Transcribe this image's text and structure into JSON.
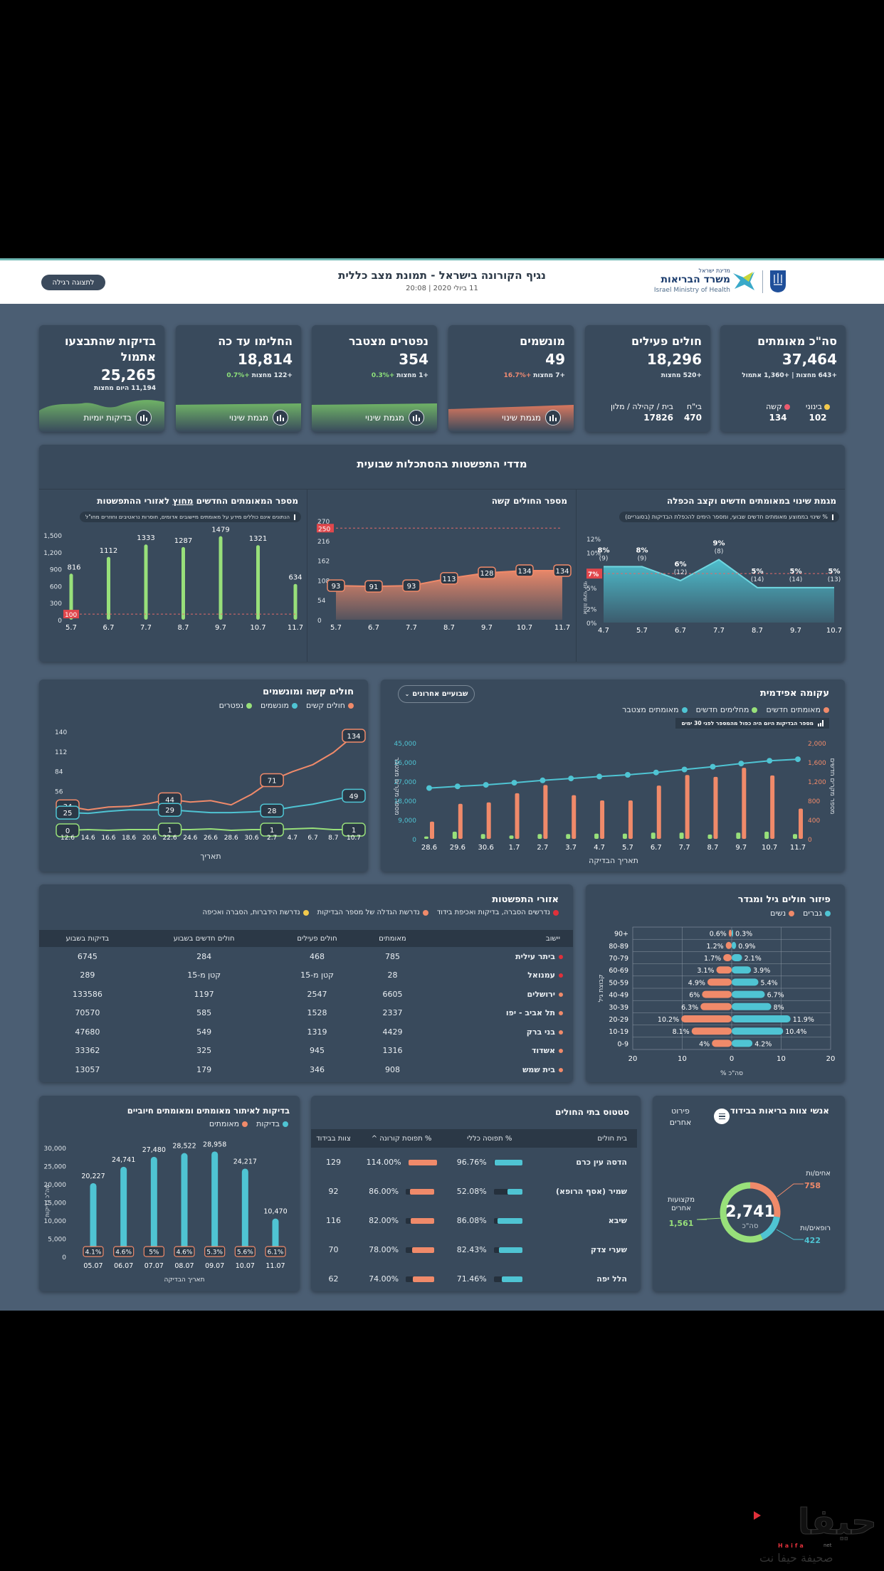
{
  "header": {
    "title": "נגיף הקורונה בישראל - תמונת מצב כללית",
    "subtitle": "11 ביולי 2020 | 20:08",
    "regular_view_button": "לתצוגה רגילה",
    "logo": {
      "line1": "מדינת ישראל",
      "line2": "משרד הבריאות",
      "line3": "Israel Ministry of Health"
    }
  },
  "kpis": [
    {
      "title": "סה\"כ מאומתים",
      "value": "37,464",
      "sub": "+643 מחצות | +1,360 אתמול",
      "legend": [
        {
          "label": "בינוני",
          "value": "102",
          "color": "#f2c94c"
        },
        {
          "label": "קשה",
          "value": "134",
          "color": "#eb5a6e"
        }
      ]
    },
    {
      "title": "חולים פעילים",
      "value": "18,296",
      "sub": "+520 מחצות",
      "split": [
        {
          "label": "בי\"ח",
          "value": "470"
        },
        {
          "label": "בית / קהילה / מלון",
          "value": "17826"
        }
      ]
    },
    {
      "title": "מונשמים",
      "value": "49",
      "sub_a": "+7 מחצות",
      "sub_pct": "+16.7%",
      "button": "מגמת שינוי"
    },
    {
      "title": "נפטרים מצטבר",
      "value": "354",
      "sub_a": "+1 מחצות",
      "sub_pct": "+0.3%",
      "button": "מגמת שינוי"
    },
    {
      "title": "החלימו עד כה",
      "value": "18,814",
      "sub_a": "+122 מחצות",
      "sub_pct": "+0.7%",
      "button": "מגמת שינוי"
    },
    {
      "title": "בדיקות שהתבצעו אתמול",
      "value": "25,265",
      "sub": "11,194 היום מחצות",
      "button": "בדיקות יומיות"
    }
  ],
  "weekly_section": {
    "title": "מדדי התפשטות בהסתכלות שבועית"
  },
  "colors": {
    "orange": "#f08a6a",
    "teal": "#4fc4d3",
    "green": "#98e07a",
    "red": "#e0474c",
    "yellow": "#f2c94c"
  },
  "chart_data": [
    {
      "id": "growth",
      "type": "area",
      "title": "מגמת שינוי במאומתים חדשים וקצב הכפלה",
      "info": "% שינוי בממוצע מאומתים חדשים שבועי, ומספר הימים להכפלת הבדיקות (בסוגריים)",
      "ylabel": "אחוז שינוי יומי",
      "categories": [
        "4.7",
        "5.7",
        "6.7",
        "7.7",
        "8.7",
        "9.7",
        "10.7"
      ],
      "values": [
        8,
        8,
        6,
        9,
        5,
        5,
        5
      ],
      "labels": [
        "8%",
        "8%",
        "6%",
        "9%",
        "5%",
        "5%",
        "5%"
      ],
      "doubling": [
        "(9)",
        "(9)",
        "(12)",
        "(8)",
        "(14)",
        "(14)",
        "(13)"
      ],
      "yticks": [
        "0%",
        "2%",
        "5%",
        "7%",
        "10%",
        "12%"
      ],
      "ylim": [
        0,
        12
      ],
      "threshold": {
        "value": 7,
        "label": "7%"
      }
    },
    {
      "id": "severe",
      "type": "area",
      "title": "מספר החולים קשה",
      "categories": [
        "5.7",
        "6.7",
        "7.7",
        "8.7",
        "9.7",
        "10.7",
        "11.7"
      ],
      "values": [
        93,
        91,
        93,
        113,
        128,
        134,
        134
      ],
      "yticks": [
        "0",
        "54",
        "108",
        "162",
        "216",
        "270"
      ],
      "ylim": [
        0,
        270
      ],
      "threshold": {
        "value": 250,
        "label": "250"
      }
    },
    {
      "id": "outside",
      "type": "bar",
      "title": "מספר המאומתים החדשים מחוץ לאזורי ההתפשטות",
      "title_underlined": "מחוץ",
      "info": "הנתונים אינם כוללים מידע על מאומתים מיישובים אדומים, חוסרות נראטיבים וחוזרים מחו\"ל",
      "categories": [
        "5.7",
        "6.7",
        "7.7",
        "8.7",
        "9.7",
        "10.7",
        "11.7"
      ],
      "values": [
        816,
        1112,
        1333,
        1287,
        1479,
        1321,
        634
      ],
      "yticks": [
        "0",
        "300",
        "600",
        "900",
        "1,200",
        "1,500"
      ],
      "ylim": [
        0,
        1500
      ],
      "threshold": {
        "value": 100,
        "label": "100"
      }
    },
    {
      "id": "epi",
      "type": "bar",
      "title": "עקומה אפידמית",
      "dropdown": "שבועיים אחרונים",
      "legend": [
        {
          "label": "מאומתים חדשים",
          "color": "#f08a6a"
        },
        {
          "label": "מחלימים חדשים",
          "color": "#98e07a"
        },
        {
          "label": "מאומתים מצטבר",
          "color": "#4fc4d3"
        }
      ],
      "note": "מספר הבדיקות היום היה כפול מהמספר לפני 30 ימים",
      "xlabel": "תאריך הבדיקה",
      "ylabel_left": "מספר מקרים מצטבר",
      "ylabel_right": "מספר מקרים חדשים",
      "categories": [
        "28.6",
        "29.6",
        "30.6",
        "1.7",
        "2.7",
        "3.7",
        "4.7",
        "5.7",
        "6.7",
        "7.7",
        "8.7",
        "9.7",
        "10.7",
        "11.7"
      ],
      "series": [
        {
          "name": "מאומתים חדשים",
          "axis": "right",
          "values": [
            360,
            730,
            760,
            950,
            1120,
            910,
            800,
            800,
            1110,
            1330,
            1290,
            1480,
            1320,
            630
          ]
        },
        {
          "name": "מחלימים חדשים",
          "axis": "right",
          "values": [
            50,
            150,
            100,
            70,
            100,
            100,
            110,
            110,
            130,
            130,
            90,
            130,
            150,
            100
          ]
        },
        {
          "name": "מאומתים מצטבר",
          "axis": "left",
          "values": [
            23800,
            24600,
            25300,
            26300,
            27400,
            28300,
            29200,
            30000,
            31100,
            32500,
            33800,
            35300,
            36600,
            37300
          ]
        }
      ],
      "yticks_left": [
        "0",
        "9,000",
        "18,000",
        "27,000",
        "36,000",
        "45,000"
      ],
      "yticks_right": [
        "0",
        "400",
        "800",
        "1,200",
        "1,600",
        "2,000"
      ],
      "ylim_left": [
        0,
        45000
      ],
      "ylim_right": [
        0,
        2000
      ]
    },
    {
      "id": "severe_vent",
      "type": "line",
      "title": "חולים קשה ומונשמים",
      "legend": [
        {
          "label": "חולים קשים",
          "color": "#f08a6a"
        },
        {
          "label": "מונשמים",
          "color": "#4fc4d3"
        },
        {
          "label": "נפטרים",
          "color": "#98e07a"
        }
      ],
      "xlabel": "תאריך",
      "categories": [
        "12.6",
        "14.6",
        "16.6",
        "18.6",
        "20.6",
        "22.6",
        "24.6",
        "26.6",
        "28.6",
        "30.6",
        "2.7",
        "4.7",
        "6.7",
        "8.7",
        "10.7"
      ],
      "series": [
        {
          "name": "חולים קשים",
          "values": [
            34,
            29,
            33,
            34,
            38,
            44,
            40,
            42,
            36,
            51,
            71,
            83,
            93,
            110,
            134
          ],
          "labels": {
            "0": "34",
            "5": "44",
            "10": "71",
            "14": "134"
          }
        },
        {
          "name": "מונשמים",
          "values": [
            25,
            24,
            27,
            29,
            29,
            29,
            27,
            25,
            25,
            26,
            28,
            33,
            37,
            43,
            49
          ],
          "labels": {
            "0": "25",
            "5": "29",
            "10": "28",
            "14": "49"
          }
        },
        {
          "name": "נפטרים",
          "values": [
            0,
            1,
            0,
            1,
            1,
            1,
            1,
            2,
            0,
            1,
            1,
            2,
            3,
            1,
            1
          ],
          "labels": {
            "0": "0",
            "5": "1",
            "10": "1",
            "14": "1"
          }
        }
      ],
      "yticks": [
        "56",
        "84",
        "112",
        "140"
      ],
      "ylim": [
        0,
        140
      ]
    },
    {
      "id": "age_gender",
      "type": "bar",
      "title": "פיזור חולים גיל ומגדר",
      "legend": [
        {
          "label": "גברים",
          "color": "#4fc4d3"
        },
        {
          "label": "נשים",
          "color": "#f08a6a"
        }
      ],
      "ylabel": "קבוצת גיל",
      "xlabel": "% סה\"כ",
      "categories": [
        "90+",
        "80-89",
        "70-79",
        "60-69",
        "50-59",
        "40-49",
        "30-39",
        "20-29",
        "10-19",
        "0-9"
      ],
      "series": [
        {
          "name": "נשים",
          "values": [
            0.6,
            1.2,
            1.7,
            3.1,
            4.9,
            6,
            6.3,
            10.2,
            8.1,
            4
          ],
          "labels": [
            "0.6%",
            "1.2%",
            "1.7%",
            "3.1%",
            "4.9%",
            "6%",
            "6.3%",
            "10.2%",
            "8.1%",
            "4%"
          ]
        },
        {
          "name": "גברים",
          "values": [
            0.3,
            0.9,
            2.1,
            3.9,
            5.4,
            6.7,
            8,
            11.9,
            10.4,
            4.2
          ],
          "labels": [
            "0.3%",
            "0.9%",
            "2.1%",
            "3.9%",
            "5.4%",
            "6.7%",
            "8%",
            "11.9%",
            "10.4%",
            "4.2%"
          ]
        }
      ],
      "xticks": [
        "20",
        "10",
        "0",
        "10",
        "20"
      ],
      "xlim": [
        -20,
        20
      ]
    },
    {
      "id": "tests",
      "type": "bar",
      "title": "בדיקות לאיתור מאומתים ומאומתים חיוביים",
      "legend": [
        {
          "label": "בדיקות",
          "color": "#4fc4d3"
        },
        {
          "label": "מאומתים",
          "color": "#f08a6a"
        }
      ],
      "xlabel": "תאריך הבדיקה",
      "ylabel": "סה\"כ בדיקות",
      "categories": [
        "05.07",
        "06.07",
        "07.07",
        "08.07",
        "09.07",
        "10.07",
        "11.07"
      ],
      "series": [
        {
          "name": "בדיקות",
          "values": [
            20227,
            24741,
            27480,
            28522,
            28958,
            24217,
            10470
          ],
          "labels": [
            "20,227",
            "24,741",
            "27,480",
            "28,522",
            "28,958",
            "24,217",
            "10,470"
          ]
        },
        {
          "name": "מאומתים",
          "values": [
            830,
            1140,
            1370,
            1310,
            1530,
            1350,
            640
          ],
          "labels": [
            "4.1%",
            "4.6%",
            "5%",
            "4.6%",
            "5.3%",
            "5.6%",
            "6.1%"
          ]
        }
      ],
      "yticks": [
        "0",
        "5,000",
        "10,000",
        "15,000",
        "20,000",
        "25,000",
        "30,000"
      ],
      "ylim": [
        0,
        30000
      ]
    },
    {
      "id": "staff",
      "type": "pie",
      "title": "אנשי צוות בריאות בבידוד",
      "total": "2,741",
      "total_label": "סה\"כ",
      "slices": [
        {
          "label": "אחים/ות",
          "value": 758,
          "display": "758",
          "color": "#f08a6a"
        },
        {
          "label": "רופאים/ות",
          "value": 422,
          "display": "422",
          "color": "#4fc4d3"
        },
        {
          "label": "מקצועות אחרים",
          "value": 1561,
          "display": "1,561",
          "color": "#98e07a"
        }
      ]
    }
  ],
  "staff_button": "פירוט אחרים",
  "regions": {
    "title": "אזורי התפשטות",
    "legend": [
      {
        "label": "נדרשים הסברה, בדיקות ואכיפת בידוד",
        "color": "#e0303a"
      },
      {
        "label": "נדרשת הגדלה של מספר הבדיקות",
        "color": "#f08a6a"
      },
      {
        "label": "נדרשת הידברות, הסברה ואכיפה",
        "color": "#f2c94c"
      }
    ],
    "columns": [
      "יישוב",
      "מאומתים",
      "חולים פעילים",
      "חולים חדשים בשבוע",
      "בדיקות בשבוע"
    ],
    "rows": [
      {
        "city": "ביתר עילית",
        "color": "#e0303a",
        "cells": [
          "785",
          "468",
          "284",
          "6745"
        ]
      },
      {
        "city": "עמנואל",
        "color": "#e0303a",
        "cells": [
          "28",
          "קטן מ-15",
          "קטן מ-15",
          "289"
        ]
      },
      {
        "city": "ירושלים",
        "color": "#f08a6a",
        "cells": [
          "6605",
          "2547",
          "1197",
          "133586"
        ]
      },
      {
        "city": "תל אביב - יפו",
        "color": "#f08a6a",
        "cells": [
          "2337",
          "1528",
          "585",
          "70570"
        ]
      },
      {
        "city": "בני ברק",
        "color": "#f08a6a",
        "cells": [
          "4429",
          "1319",
          "549",
          "47680"
        ]
      },
      {
        "city": "אשדוד",
        "color": "#f08a6a",
        "cells": [
          "1316",
          "945",
          "325",
          "33362"
        ]
      },
      {
        "city": "בית שמש",
        "color": "#f08a6a",
        "cells": [
          "908",
          "346",
          "179",
          "13057"
        ]
      }
    ]
  },
  "hospitals": {
    "title": "סטטוס בתי החולים",
    "columns": [
      "בית חולים",
      "% תפוסה כללי",
      "% תפוסת קורונה ^",
      "צוות בבידוד"
    ],
    "rows": [
      {
        "name": "הדסה עין כרם",
        "general": "96.76%",
        "general_pct": 96.76,
        "corona": "114.00%",
        "corona_pct": 114,
        "staff": "129"
      },
      {
        "name": "שמיר (אסף הרופא)",
        "general": "52.08%",
        "general_pct": 52.08,
        "corona": "86.00%",
        "corona_pct": 86,
        "staff": "92"
      },
      {
        "name": "שיבא",
        "general": "86.08%",
        "general_pct": 86.08,
        "corona": "82.00%",
        "corona_pct": 82,
        "staff": "116"
      },
      {
        "name": "שערי צדק",
        "general": "82.43%",
        "general_pct": 82.43,
        "corona": "78.00%",
        "corona_pct": 78,
        "staff": "70"
      },
      {
        "name": "הלל יפה",
        "general": "71.46%",
        "general_pct": 71.46,
        "corona": "74.00%",
        "corona_pct": 74,
        "staff": "62"
      }
    ]
  },
  "watermark": {
    "brand": "حيفا",
    "latin": "Haifa",
    "net": "net",
    "tagline": "صحيفة حيفا نت"
  }
}
